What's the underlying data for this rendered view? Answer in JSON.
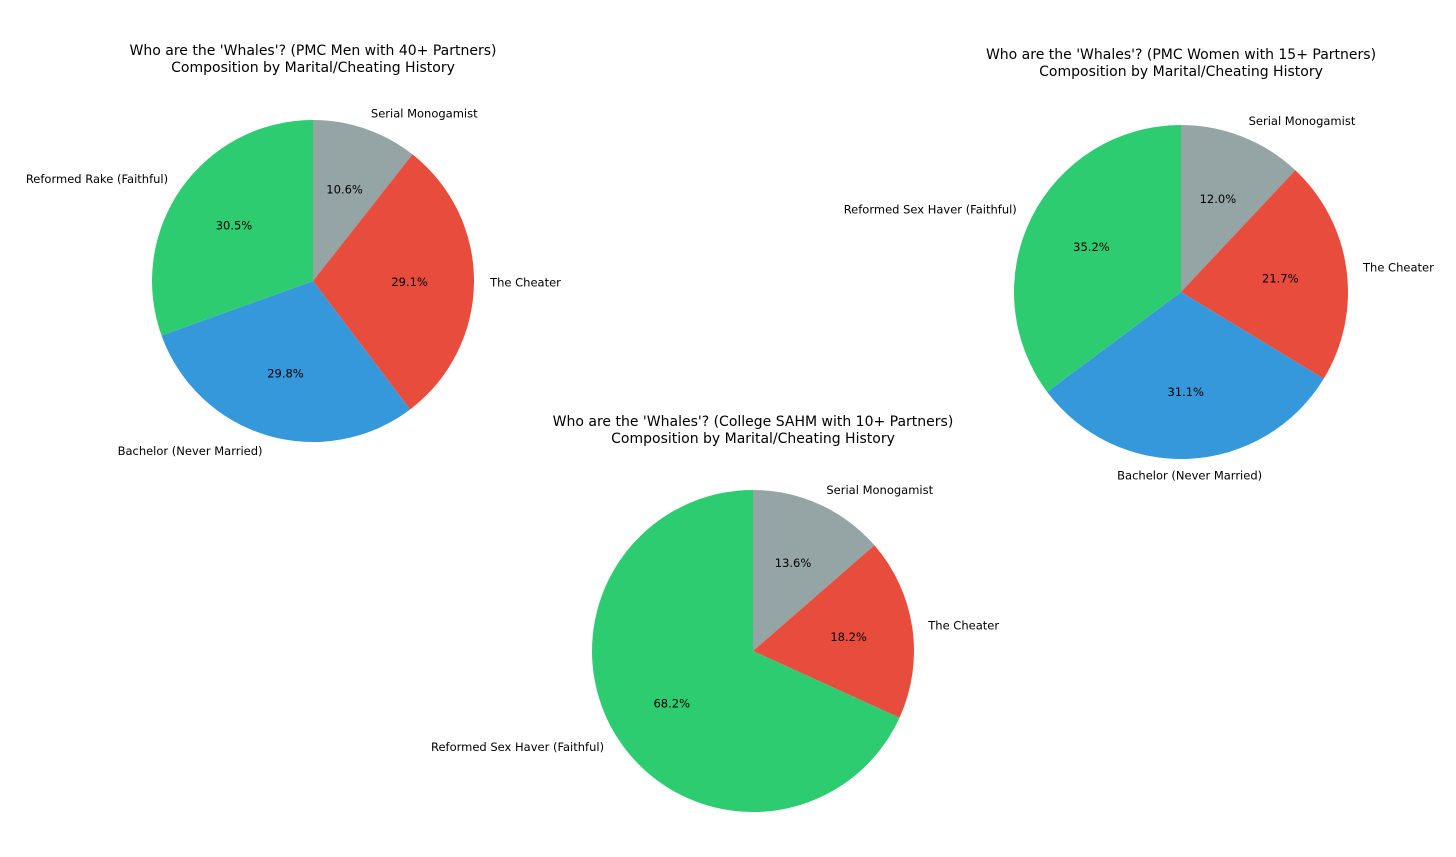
{
  "chart_data": [
    {
      "type": "pie",
      "title": "Who are the 'Whales'? (PMC Men with 40+ Partners)",
      "subtitle": "Composition by Marital/Cheating History",
      "start_angle": "top",
      "direction": "clockwise",
      "slices": [
        {
          "label": "Serial Monogamist",
          "value": 10.6,
          "pct_label": "10.6%",
          "color": "#95a5a6"
        },
        {
          "label": "The Cheater",
          "value": 29.1,
          "pct_label": "29.1%",
          "color": "#e74c3c"
        },
        {
          "label": "Bachelor (Never Married)",
          "value": 29.8,
          "pct_label": "29.8%",
          "color": "#3498db"
        },
        {
          "label": "Reformed Rake (Faithful)",
          "value": 30.5,
          "pct_label": "30.5%",
          "color": "#2ecc71"
        }
      ]
    },
    {
      "type": "pie",
      "title": "Who are the 'Whales'? (PMC Women with 15+ Partners)",
      "subtitle": "Composition by Marital/Cheating History",
      "start_angle": "top",
      "direction": "clockwise",
      "slices": [
        {
          "label": "Serial Monogamist",
          "value": 12.0,
          "pct_label": "12.0%",
          "color": "#95a5a6"
        },
        {
          "label": "The Cheater",
          "value": 21.7,
          "pct_label": "21.7%",
          "color": "#e74c3c"
        },
        {
          "label": "Bachelor (Never Married)",
          "value": 31.1,
          "pct_label": "31.1%",
          "color": "#3498db"
        },
        {
          "label": "Reformed Sex Haver (Faithful)",
          "value": 35.2,
          "pct_label": "35.2%",
          "color": "#2ecc71"
        }
      ]
    },
    {
      "type": "pie",
      "title": "Who are the 'Whales'? (College SAHM with 10+ Partners)",
      "subtitle": "Composition by Marital/Cheating History",
      "start_angle": "top",
      "direction": "clockwise",
      "slices": [
        {
          "label": "Serial Monogamist",
          "value": 13.6,
          "pct_label": "13.6%",
          "color": "#95a5a6"
        },
        {
          "label": "The Cheater",
          "value": 18.2,
          "pct_label": "18.2%",
          "color": "#e74c3c"
        },
        {
          "label": "Reformed Sex Haver (Faithful)",
          "value": 68.2,
          "pct_label": "68.2%",
          "color": "#2ecc71"
        }
      ]
    }
  ]
}
